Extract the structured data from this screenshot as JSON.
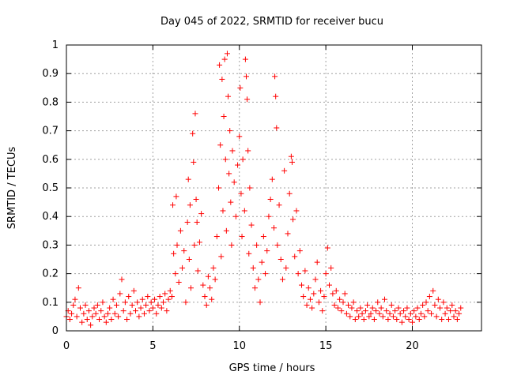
{
  "chart_data": {
    "type": "scatter",
    "title": "Day 045 of 2022, SRMTID for receiver bucu",
    "xlabel": "GPS time / hours",
    "ylabel": "SRMTID / TECUs",
    "xlim": [
      0,
      24
    ],
    "ylim": [
      0,
      1
    ],
    "xticks": [
      0,
      5,
      10,
      15,
      20
    ],
    "yticks": [
      0,
      0.1,
      0.2,
      0.3,
      0.4,
      0.5,
      0.6,
      0.7,
      0.8,
      0.9,
      1
    ],
    "ytick_labels": [
      "0",
      "0.1",
      "0.2",
      "0.3",
      "0.4",
      "0.5",
      "0.6",
      "0.7",
      "0.8",
      "0.9",
      "1"
    ],
    "grid": true,
    "marker": "+",
    "color": "#ff0000",
    "series": [
      {
        "name": "SRMTID",
        "points": [
          [
            0.0,
            0.05
          ],
          [
            0.1,
            0.07
          ],
          [
            0.2,
            0.04
          ],
          [
            0.3,
            0.06
          ],
          [
            0.4,
            0.09
          ],
          [
            0.5,
            0.11
          ],
          [
            0.6,
            0.05
          ],
          [
            0.7,
            0.15
          ],
          [
            0.8,
            0.08
          ],
          [
            0.9,
            0.03
          ],
          [
            1.0,
            0.06
          ],
          [
            1.1,
            0.09
          ],
          [
            1.2,
            0.04
          ],
          [
            1.3,
            0.07
          ],
          [
            1.4,
            0.02
          ],
          [
            1.5,
            0.05
          ],
          [
            1.6,
            0.08
          ],
          [
            1.7,
            0.06
          ],
          [
            1.8,
            0.09
          ],
          [
            1.9,
            0.04
          ],
          [
            2.0,
            0.07
          ],
          [
            2.1,
            0.1
          ],
          [
            2.2,
            0.05
          ],
          [
            2.3,
            0.03
          ],
          [
            2.4,
            0.06
          ],
          [
            2.5,
            0.08
          ],
          [
            2.6,
            0.04
          ],
          [
            2.7,
            0.11
          ],
          [
            2.8,
            0.06
          ],
          [
            2.9,
            0.09
          ],
          [
            3.0,
            0.05
          ],
          [
            3.1,
            0.13
          ],
          [
            3.2,
            0.18
          ],
          [
            3.3,
            0.07
          ],
          [
            3.4,
            0.1
          ],
          [
            3.5,
            0.04
          ],
          [
            3.6,
            0.12
          ],
          [
            3.7,
            0.06
          ],
          [
            3.8,
            0.09
          ],
          [
            3.9,
            0.14
          ],
          [
            4.0,
            0.07
          ],
          [
            4.1,
            0.1
          ],
          [
            4.2,
            0.05
          ],
          [
            4.3,
            0.08
          ],
          [
            4.4,
            0.11
          ],
          [
            4.5,
            0.06
          ],
          [
            4.6,
            0.09
          ],
          [
            4.7,
            0.12
          ],
          [
            4.8,
            0.07
          ],
          [
            4.9,
            0.1
          ],
          [
            5.0,
            0.08
          ],
          [
            5.1,
            0.11
          ],
          [
            5.2,
            0.06
          ],
          [
            5.3,
            0.09
          ],
          [
            5.4,
            0.12
          ],
          [
            5.5,
            0.08
          ],
          [
            5.6,
            0.1
          ],
          [
            5.7,
            0.13
          ],
          [
            5.8,
            0.07
          ],
          [
            5.9,
            0.11
          ],
          [
            6.0,
            0.14
          ],
          [
            6.1,
            0.12
          ],
          [
            6.15,
            0.44
          ],
          [
            6.2,
            0.27
          ],
          [
            6.3,
            0.2
          ],
          [
            6.35,
            0.47
          ],
          [
            6.4,
            0.3
          ],
          [
            6.5,
            0.17
          ],
          [
            6.6,
            0.35
          ],
          [
            6.7,
            0.22
          ],
          [
            6.8,
            0.28
          ],
          [
            6.9,
            0.1
          ],
          [
            7.0,
            0.38
          ],
          [
            7.05,
            0.53
          ],
          [
            7.1,
            0.25
          ],
          [
            7.15,
            0.44
          ],
          [
            7.2,
            0.15
          ],
          [
            7.3,
            0.69
          ],
          [
            7.35,
            0.59
          ],
          [
            7.4,
            0.3
          ],
          [
            7.45,
            0.76
          ],
          [
            7.5,
            0.46
          ],
          [
            7.55,
            0.38
          ],
          [
            7.6,
            0.21
          ],
          [
            7.7,
            0.31
          ],
          [
            7.8,
            0.41
          ],
          [
            7.9,
            0.16
          ],
          [
            8.0,
            0.12
          ],
          [
            8.1,
            0.09
          ],
          [
            8.2,
            0.19
          ],
          [
            8.3,
            0.15
          ],
          [
            8.4,
            0.11
          ],
          [
            8.5,
            0.22
          ],
          [
            8.6,
            0.18
          ],
          [
            8.7,
            0.33
          ],
          [
            8.8,
            0.5
          ],
          [
            8.85,
            0.93
          ],
          [
            8.9,
            0.65
          ],
          [
            8.95,
            0.26
          ],
          [
            9.0,
            0.88
          ],
          [
            9.05,
            0.42
          ],
          [
            9.1,
            0.75
          ],
          [
            9.15,
            0.95
          ],
          [
            9.2,
            0.6
          ],
          [
            9.25,
            0.35
          ],
          [
            9.3,
            0.97
          ],
          [
            9.35,
            0.82
          ],
          [
            9.4,
            0.55
          ],
          [
            9.45,
            0.7
          ],
          [
            9.5,
            0.45
          ],
          [
            9.55,
            0.3
          ],
          [
            9.6,
            0.63
          ],
          [
            9.7,
            0.52
          ],
          [
            9.8,
            0.4
          ],
          [
            9.9,
            0.58
          ],
          [
            10.0,
            0.68
          ],
          [
            10.05,
            0.85
          ],
          [
            10.1,
            0.48
          ],
          [
            10.15,
            0.33
          ],
          [
            10.2,
            0.6
          ],
          [
            10.3,
            0.42
          ],
          [
            10.35,
            0.95
          ],
          [
            10.4,
            0.89
          ],
          [
            10.45,
            0.81
          ],
          [
            10.5,
            0.63
          ],
          [
            10.55,
            0.27
          ],
          [
            10.6,
            0.5
          ],
          [
            10.7,
            0.37
          ],
          [
            10.8,
            0.22
          ],
          [
            10.9,
            0.15
          ],
          [
            11.0,
            0.3
          ],
          [
            11.1,
            0.18
          ],
          [
            11.2,
            0.1
          ],
          [
            11.3,
            0.24
          ],
          [
            11.4,
            0.33
          ],
          [
            11.5,
            0.2
          ],
          [
            11.6,
            0.28
          ],
          [
            11.7,
            0.4
          ],
          [
            11.8,
            0.46
          ],
          [
            11.9,
            0.53
          ],
          [
            12.0,
            0.36
          ],
          [
            12.05,
            0.89
          ],
          [
            12.1,
            0.82
          ],
          [
            12.15,
            0.71
          ],
          [
            12.2,
            0.3
          ],
          [
            12.3,
            0.44
          ],
          [
            12.4,
            0.25
          ],
          [
            12.5,
            0.18
          ],
          [
            12.6,
            0.56
          ],
          [
            12.7,
            0.22
          ],
          [
            12.8,
            0.34
          ],
          [
            12.9,
            0.48
          ],
          [
            13.0,
            0.61
          ],
          [
            13.05,
            0.59
          ],
          [
            13.1,
            0.39
          ],
          [
            13.2,
            0.26
          ],
          [
            13.3,
            0.42
          ],
          [
            13.4,
            0.2
          ],
          [
            13.5,
            0.28
          ],
          [
            13.6,
            0.16
          ],
          [
            13.7,
            0.12
          ],
          [
            13.8,
            0.21
          ],
          [
            13.9,
            0.09
          ],
          [
            14.0,
            0.15
          ],
          [
            14.1,
            0.11
          ],
          [
            14.2,
            0.08
          ],
          [
            14.3,
            0.13
          ],
          [
            14.4,
            0.18
          ],
          [
            14.5,
            0.24
          ],
          [
            14.6,
            0.1
          ],
          [
            14.7,
            0.14
          ],
          [
            14.8,
            0.07
          ],
          [
            14.9,
            0.12
          ],
          [
            15.0,
            0.2
          ],
          [
            15.1,
            0.29
          ],
          [
            15.2,
            0.16
          ],
          [
            15.3,
            0.22
          ],
          [
            15.4,
            0.13
          ],
          [
            15.5,
            0.09
          ],
          [
            15.6,
            0.14
          ],
          [
            15.7,
            0.08
          ],
          [
            15.8,
            0.11
          ],
          [
            15.9,
            0.07
          ],
          [
            16.0,
            0.1
          ],
          [
            16.1,
            0.13
          ],
          [
            16.2,
            0.06
          ],
          [
            16.3,
            0.09
          ],
          [
            16.4,
            0.05
          ],
          [
            16.5,
            0.08
          ],
          [
            16.6,
            0.1
          ],
          [
            16.7,
            0.04
          ],
          [
            16.8,
            0.07
          ],
          [
            16.9,
            0.05
          ],
          [
            17.0,
            0.08
          ],
          [
            17.1,
            0.06
          ],
          [
            17.2,
            0.04
          ],
          [
            17.3,
            0.07
          ],
          [
            17.4,
            0.09
          ],
          [
            17.5,
            0.05
          ],
          [
            17.6,
            0.06
          ],
          [
            17.7,
            0.08
          ],
          [
            17.8,
            0.04
          ],
          [
            17.9,
            0.07
          ],
          [
            18.0,
            0.1
          ],
          [
            18.1,
            0.06
          ],
          [
            18.2,
            0.08
          ],
          [
            18.3,
            0.05
          ],
          [
            18.4,
            0.11
          ],
          [
            18.5,
            0.07
          ],
          [
            18.6,
            0.04
          ],
          [
            18.7,
            0.06
          ],
          [
            18.8,
            0.09
          ],
          [
            18.9,
            0.05
          ],
          [
            19.0,
            0.07
          ],
          [
            19.1,
            0.04
          ],
          [
            19.2,
            0.08
          ],
          [
            19.3,
            0.06
          ],
          [
            19.4,
            0.03
          ],
          [
            19.5,
            0.07
          ],
          [
            19.6,
            0.05
          ],
          [
            19.7,
            0.08
          ],
          [
            19.8,
            0.04
          ],
          [
            19.9,
            0.06
          ],
          [
            20.0,
            0.03
          ],
          [
            20.1,
            0.07
          ],
          [
            20.2,
            0.05
          ],
          [
            20.3,
            0.08
          ],
          [
            20.4,
            0.04
          ],
          [
            20.5,
            0.06
          ],
          [
            20.6,
            0.09
          ],
          [
            20.7,
            0.05
          ],
          [
            20.8,
            0.1
          ],
          [
            20.9,
            0.07
          ],
          [
            21.0,
            0.12
          ],
          [
            21.1,
            0.06
          ],
          [
            21.2,
            0.14
          ],
          [
            21.3,
            0.09
          ],
          [
            21.4,
            0.05
          ],
          [
            21.5,
            0.11
          ],
          [
            21.6,
            0.08
          ],
          [
            21.7,
            0.04
          ],
          [
            21.8,
            0.1
          ],
          [
            21.9,
            0.06
          ],
          [
            22.0,
            0.08
          ],
          [
            22.1,
            0.04
          ],
          [
            22.2,
            0.07
          ],
          [
            22.3,
            0.09
          ],
          [
            22.4,
            0.05
          ],
          [
            22.5,
            0.07
          ],
          [
            22.6,
            0.04
          ],
          [
            22.7,
            0.06
          ],
          [
            22.8,
            0.08
          ]
        ]
      }
    ]
  }
}
